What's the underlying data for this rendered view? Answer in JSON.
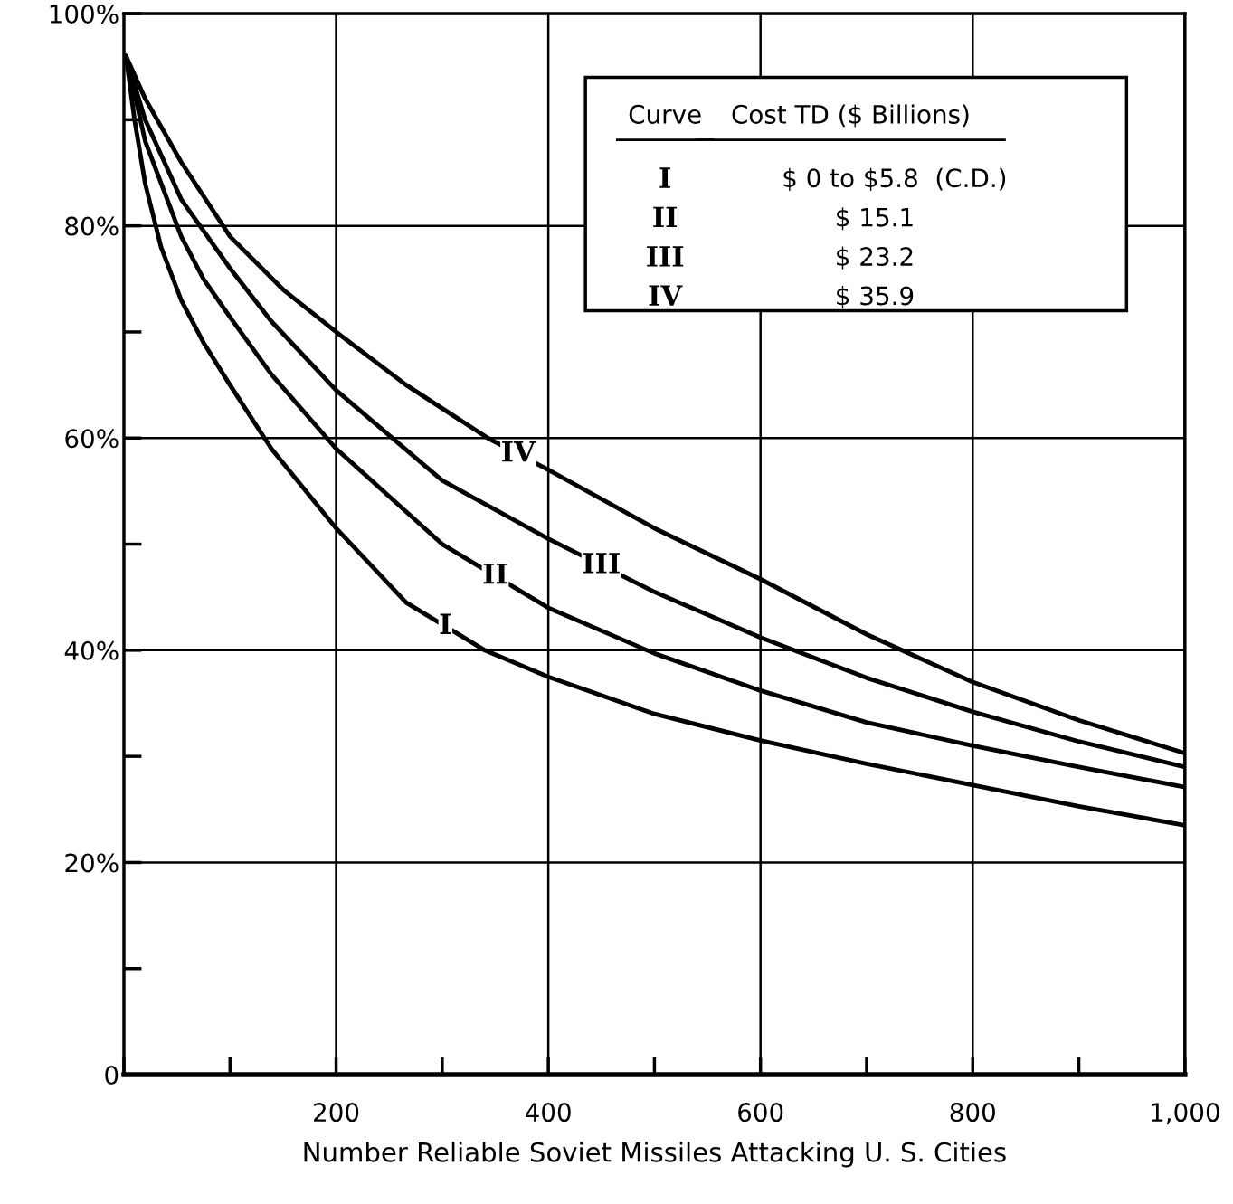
{
  "chart_data": {
    "type": "line",
    "xlabel": "Number Reliable Soviet Missiles Attacking U. S. Cities",
    "xlim": [
      0,
      1000
    ],
    "ylim": [
      0,
      100
    ],
    "xticks": [
      200,
      400,
      600,
      800,
      {
        "value": 1000,
        "label": "1,000"
      }
    ],
    "yticks": [
      0,
      {
        "value": 20,
        "label": "20%"
      },
      {
        "value": 40,
        "label": "40%"
      },
      {
        "value": 60,
        "label": "60%"
      },
      {
        "value": 80,
        "label": "80%"
      },
      {
        "value": 100,
        "label": "100%"
      }
    ],
    "grid": true,
    "legend": "top right",
    "marker": "none",
    "line_style": "solid",
    "series": [
      {
        "name": "I",
        "color": "#000000",
        "x": [
          2,
          10,
          20,
          35,
          54,
          75,
          100,
          139,
          200,
          266,
          340,
          400,
          500,
          600,
          700,
          800,
          900,
          1000
        ],
        "values": [
          96,
          90,
          84,
          78,
          73,
          69,
          65,
          59,
          51.5,
          44.5,
          40,
          37.5,
          34,
          31.5,
          29.3,
          27.3,
          25.3,
          23.5
        ]
      },
      {
        "name": "II",
        "color": "#000000",
        "x": [
          2,
          20,
          54,
          75,
          100,
          139,
          200,
          300,
          400,
          500,
          600,
          700,
          800,
          900,
          1000
        ],
        "values": [
          96,
          88,
          79,
          75,
          71.4,
          66,
          59,
          50,
          44,
          39.7,
          36.2,
          33.2,
          31,
          29,
          27.1
        ]
      },
      {
        "name": "III",
        "color": "#000000",
        "x": [
          2,
          20,
          54,
          100,
          139,
          200,
          300,
          400,
          500,
          600,
          700,
          800,
          900,
          1000
        ],
        "values": [
          96,
          90,
          82.5,
          76,
          71,
          64.5,
          56,
          50.5,
          45.5,
          41.2,
          37.4,
          34.2,
          31.4,
          29
        ]
      },
      {
        "name": "IV",
        "color": "#000000",
        "x": [
          2,
          20,
          54,
          100,
          150,
          200,
          266,
          343,
          400,
          500,
          600,
          700,
          800,
          900,
          1000
        ],
        "values": [
          96,
          92,
          86,
          79,
          74,
          70,
          65,
          60,
          57,
          51.5,
          46.7,
          41.5,
          37,
          33.4,
          30.3
        ]
      }
    ],
    "annotations": [
      "Curve",
      "Cost TD ($ Billions)",
      "$ 0 to $5.8  (C.D.)",
      "$ 15.1",
      "$ 23.2",
      "$ 35.9"
    ]
  }
}
